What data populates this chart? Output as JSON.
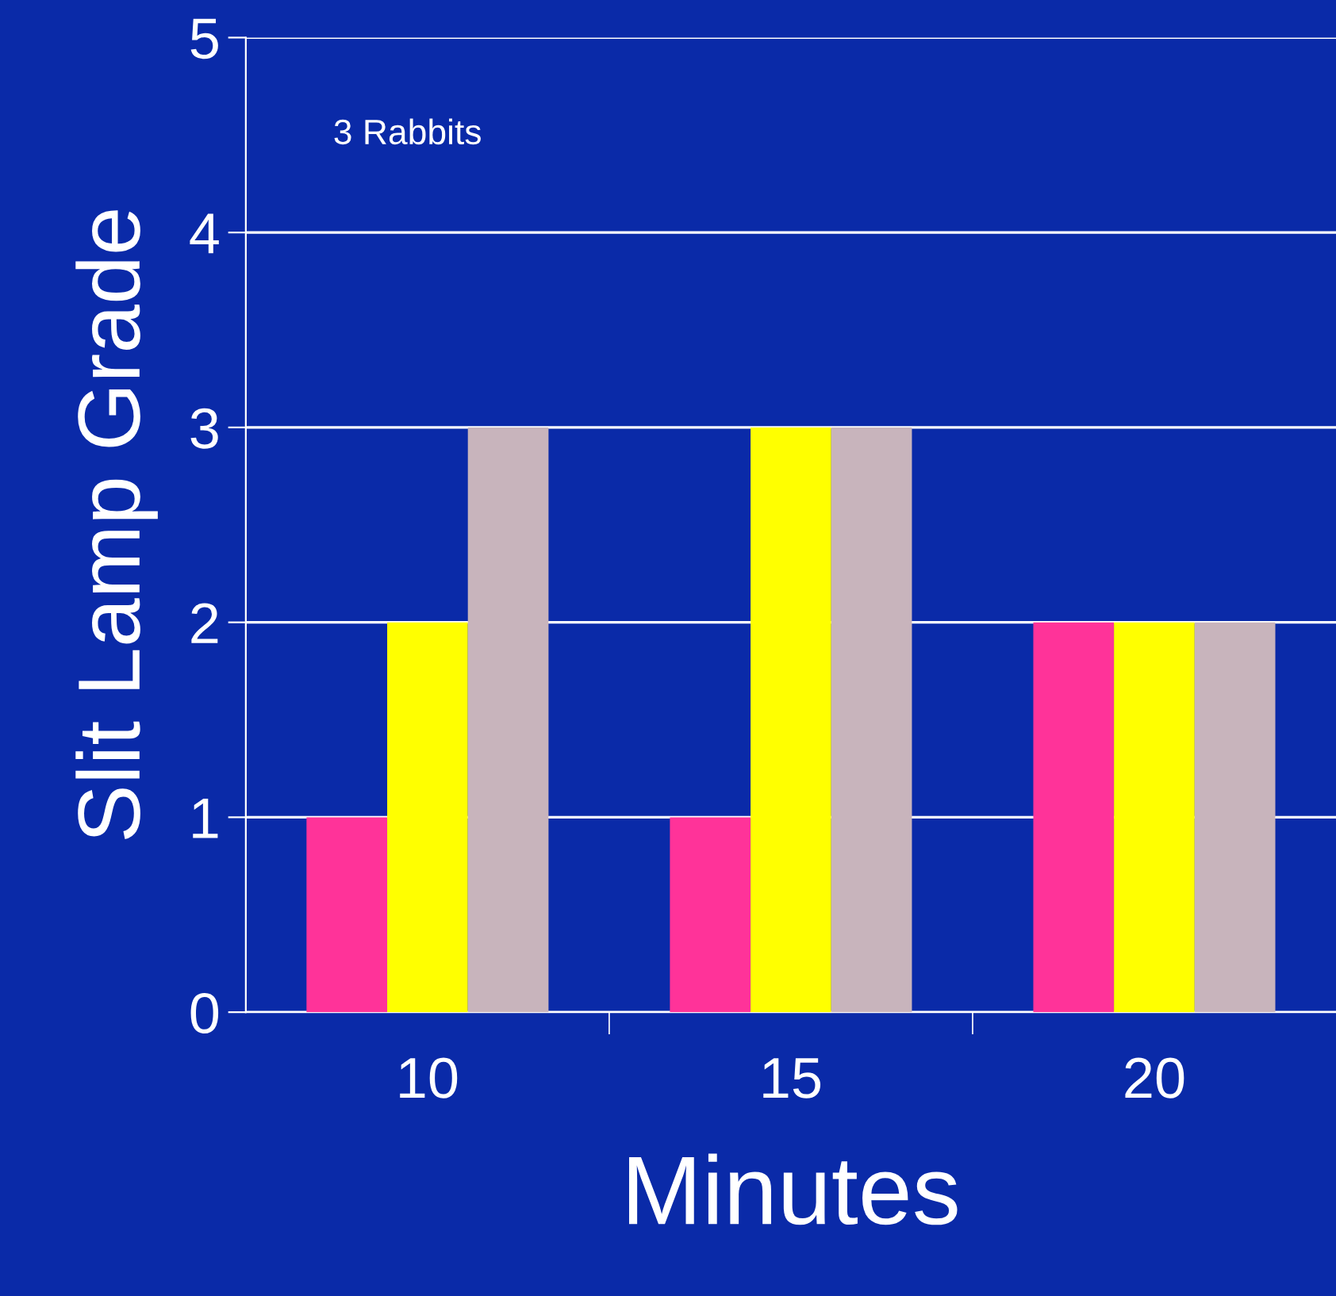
{
  "chart_data": {
    "type": "bar",
    "xlabel": "Minutes",
    "ylabel": "Slit Lamp Grade",
    "categories": [
      "10",
      "15",
      "20"
    ],
    "series": [
      {
        "color": "#ff3399",
        "values": [
          1,
          1,
          2
        ]
      },
      {
        "color": "#ffff00",
        "values": [
          2,
          3,
          2
        ]
      },
      {
        "color": "#c8b4bc",
        "values": [
          3,
          3,
          2
        ]
      }
    ],
    "ylim": [
      0,
      5
    ],
    "yticks": [
      0,
      1,
      2,
      3,
      4,
      5
    ],
    "grid": "y",
    "legend": false,
    "annotations": [
      "3 Rabbits"
    ]
  }
}
